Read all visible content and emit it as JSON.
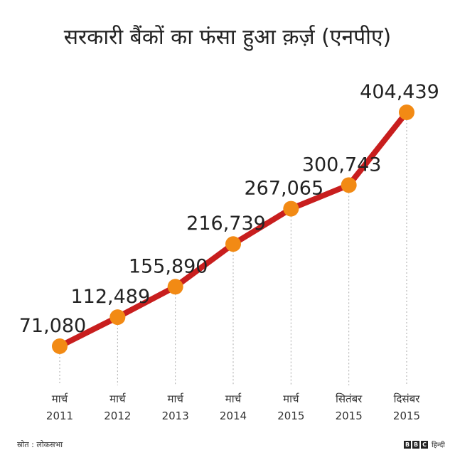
{
  "chart_data": {
    "type": "line",
    "title": "सरकारी बैंकों का फंसा हुआ क़र्ज़ (एनपीए)",
    "categories": [
      [
        "मार्च",
        "2011"
      ],
      [
        "मार्च",
        "2012"
      ],
      [
        "मार्च",
        "2013"
      ],
      [
        "मार्च",
        "2014"
      ],
      [
        "मार्च",
        "2015"
      ],
      [
        "सितंबर",
        "2015"
      ],
      [
        "दिसंबर",
        "2015"
      ]
    ],
    "values": [
      71080,
      112489,
      155890,
      216739,
      267065,
      300743,
      404439
    ],
    "data_labels": [
      "71,080",
      "112,489",
      "155,890",
      "216,739",
      "267,065",
      "300,743",
      "404,439"
    ],
    "colors": {
      "line": "#c81e1e",
      "marker": "#f28a14",
      "dropline": "#aaaaaa"
    },
    "grid": false
  },
  "source": "स्रोत : लोकसभा",
  "logo": {
    "letters": [
      "B",
      "B",
      "C"
    ],
    "text": "हिन्दी"
  }
}
